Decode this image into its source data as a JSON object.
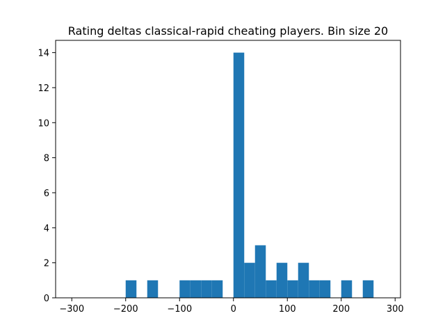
{
  "chart_data": {
    "type": "bar",
    "title": "Rating deltas classical-rapid cheating players. Bin size 20",
    "xlabel": "",
    "ylabel": "",
    "xlim": [
      -330,
      310
    ],
    "ylim": [
      0,
      14.7
    ],
    "bin_size": 20,
    "bar_color": "#1f77b4",
    "grid": false,
    "x_ticks": [
      -300,
      -200,
      -100,
      0,
      100,
      200,
      300
    ],
    "y_ticks": [
      0,
      2,
      4,
      6,
      8,
      10,
      12,
      14
    ],
    "bins": [
      {
        "start": -200,
        "end": -180,
        "count": 1
      },
      {
        "start": -160,
        "end": -140,
        "count": 1
      },
      {
        "start": -100,
        "end": -80,
        "count": 1
      },
      {
        "start": -80,
        "end": -60,
        "count": 1
      },
      {
        "start": -60,
        "end": -40,
        "count": 1
      },
      {
        "start": -40,
        "end": -20,
        "count": 1
      },
      {
        "start": 0,
        "end": 20,
        "count": 14
      },
      {
        "start": 20,
        "end": 40,
        "count": 2
      },
      {
        "start": 40,
        "end": 60,
        "count": 3
      },
      {
        "start": 60,
        "end": 80,
        "count": 1
      },
      {
        "start": 80,
        "end": 100,
        "count": 2
      },
      {
        "start": 100,
        "end": 120,
        "count": 1
      },
      {
        "start": 120,
        "end": 140,
        "count": 2
      },
      {
        "start": 140,
        "end": 160,
        "count": 1
      },
      {
        "start": 160,
        "end": 180,
        "count": 1
      },
      {
        "start": 200,
        "end": 220,
        "count": 1
      },
      {
        "start": 240,
        "end": 260,
        "count": 1
      }
    ]
  }
}
